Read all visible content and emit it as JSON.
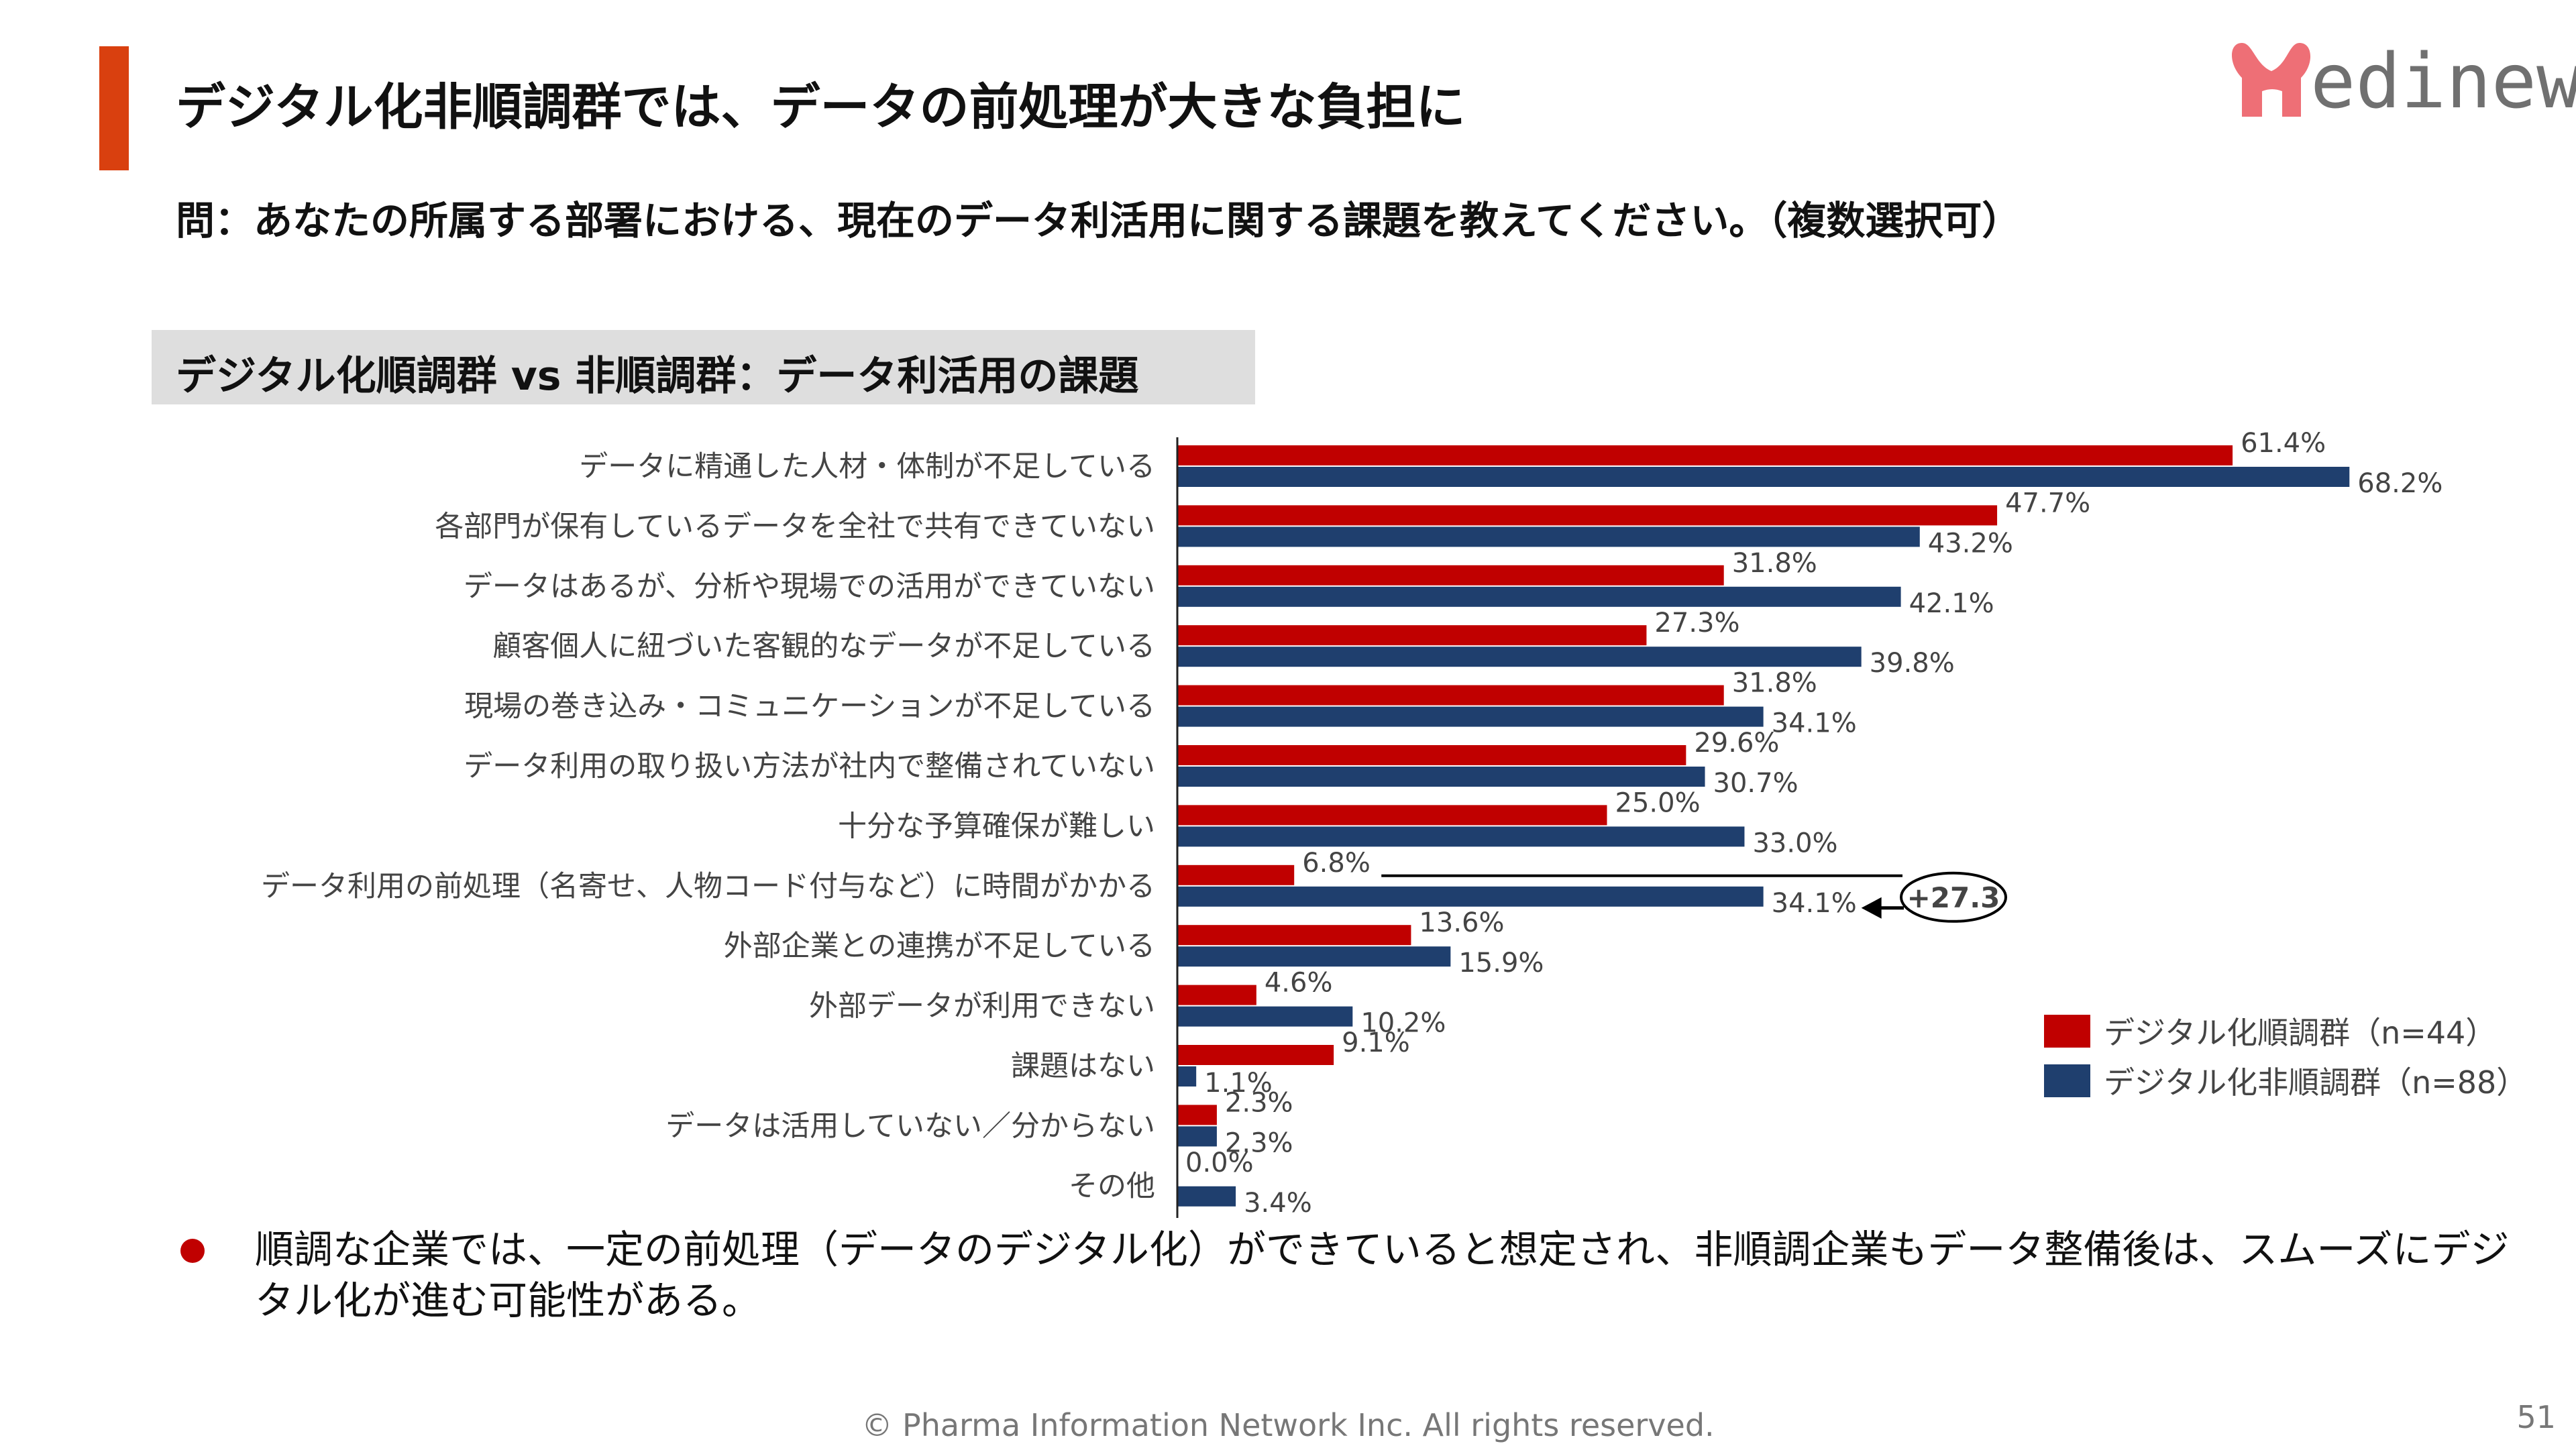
{
  "header": {
    "title": "デジタル化非順調群では、データの前処理が大きな負担に",
    "question": "問：あなたの所属する部署における、現在のデータ利活用に関する課題を教えてください。（複数選択可）",
    "logo_text": "edinew",
    "logo_full": "Medinew",
    "accent_color": "#d9400f"
  },
  "section_title": "デジタル化順調群 vs 非順調群：データ利活用の課題",
  "chart_data": {
    "type": "bar",
    "orientation": "horizontal",
    "categories": [
      "データに精通した人材・体制が不足している",
      "各部門が保有しているデータを全社で共有できていない",
      "データはあるが、分析や現場での活用ができていない",
      "顧客個人に紐づいた客観的なデータが不足している",
      "現場の巻き込み・コミュニケーションが不足している",
      "データ利用の取り扱い方法が社内で整備されていない",
      "十分な予算確保が難しい",
      "データ利用の前処理（名寄せ、人物コード付与など）に時間がかかる",
      "外部企業との連携が不足している",
      "外部データが利用できない",
      "課題はない",
      "データは活用していない／分からない",
      "その他"
    ],
    "series": [
      {
        "name": "デジタル化順調群（n=44）",
        "color": "#c00000",
        "values": [
          61.4,
          47.7,
          31.8,
          27.3,
          31.8,
          29.6,
          25.0,
          6.8,
          13.6,
          4.6,
          9.1,
          2.3,
          0.0
        ]
      },
      {
        "name": "デジタル化非順調群（n=88）",
        "color": "#1f3f6e",
        "values": [
          68.2,
          43.2,
          42.1,
          39.8,
          34.1,
          30.7,
          33.0,
          34.1,
          15.9,
          10.2,
          1.1,
          2.3,
          3.4
        ]
      }
    ],
    "value_suffix": "%",
    "xlim": [
      0,
      70
    ],
    "grid": false,
    "legend_position": "bottom-right",
    "annotation": {
      "category_index": 7,
      "text": "+27.3"
    }
  },
  "bullet": "順調な企業では、一定の前処理（データのデジタル化）ができていると想定され、非順調企業もデータ整備後は、スムーズにデジタル化が進む可能性がある。",
  "footer": {
    "copyright": "© Pharma Information Network Inc.  All rights reserved.",
    "page_number": "51"
  }
}
